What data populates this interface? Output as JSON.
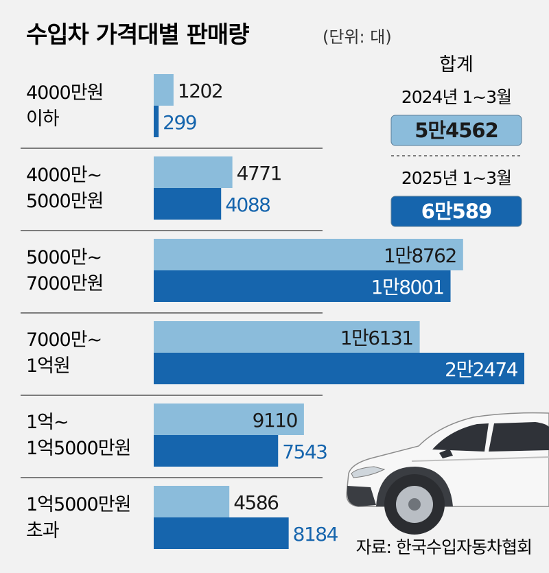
{
  "title": "수입차 가격대별 판매량",
  "unit": "(단위: 대)",
  "chart_data": {
    "type": "bar",
    "orientation": "horizontal",
    "categories": [
      [
        "4000만원",
        "이하"
      ],
      [
        "4000만~",
        "5000만원"
      ],
      [
        "5000만~",
        "7000만원"
      ],
      [
        "7000만~",
        "1억원"
      ],
      [
        "1억~",
        "1억5000만원"
      ],
      [
        "1억5000만원",
        "초과"
      ]
    ],
    "series": [
      {
        "name": "2024년 1~3월",
        "values": [
          1202,
          4771,
          18762,
          16131,
          9110,
          4586
        ],
        "labels": [
          "1202",
          "4771",
          "1만8762",
          "1만6131",
          "9110",
          "4586"
        ],
        "color": "#8bbcdb",
        "label_color": "#1a1a1a"
      },
      {
        "name": "2025년 1~3월",
        "values": [
          299,
          4088,
          18001,
          22474,
          7543,
          8184
        ],
        "labels": [
          "299",
          "4088",
          "1만8001",
          "2만2474",
          "7543",
          "8184"
        ],
        "color": "#1665ad",
        "label_color": "#1665ad"
      }
    ]
  },
  "totals": {
    "heading": "합계",
    "items": [
      {
        "period": "2024년 1~3월",
        "value": "5만4562",
        "box_color": "#8bbcdb",
        "text_color": "#1a1a1a"
      },
      {
        "period": "2025년 1~3월",
        "value": "6만589",
        "box_color": "#1665ad",
        "text_color": "#ffffff"
      }
    ]
  },
  "source": "자료: 한국수입자동차협회",
  "car_icon": "suv-car-illustration"
}
